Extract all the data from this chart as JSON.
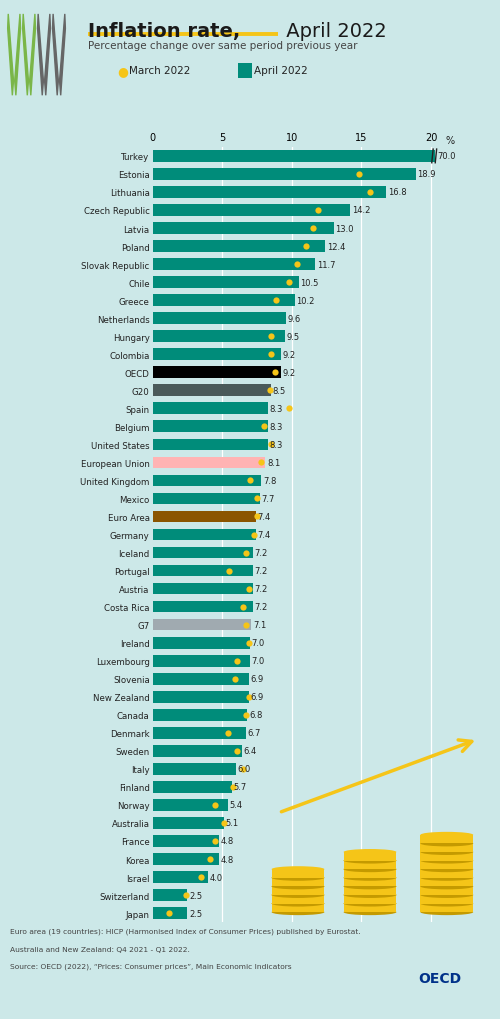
{
  "title_bold": "Inflation rate,",
  "title_regular": " April 2022",
  "subtitle": "Percentage change over same period previous year",
  "background_color": "#cce8e8",
  "bar_color_default": "#008C7A",
  "bar_color_oecd": "#000000",
  "bar_color_g20": "#4a5a5a",
  "bar_color_eu": "#ffb3b3",
  "bar_color_euroarea": "#8B5500",
  "bar_color_g7": "#a0aab0",
  "dot_color": "#F5C518",
  "countries": [
    "Turkey",
    "Estonia",
    "Lithuania",
    "Czech Republic",
    "Latvia",
    "Poland",
    "Slovak Republic",
    "Chile",
    "Greece",
    "Netherlands",
    "Hungary",
    "Colombia",
    "OECD",
    "G20",
    "Spain",
    "Belgium",
    "United States",
    "European Union",
    "United Kingdom",
    "Mexico",
    "Euro Area",
    "Germany",
    "Iceland",
    "Portugal",
    "Austria",
    "Costa Rica",
    "G7",
    "Ireland",
    "Luxembourg",
    "Slovenia",
    "New Zealand",
    "Canada",
    "Denmark",
    "Sweden",
    "Italy",
    "Finland",
    "Norway",
    "Australia",
    "France",
    "Korea",
    "Israel",
    "Switzerland",
    "Japan"
  ],
  "april_values": [
    70.0,
    18.9,
    16.8,
    14.2,
    13.0,
    12.4,
    11.7,
    10.5,
    10.2,
    9.6,
    9.5,
    9.2,
    9.2,
    8.5,
    8.3,
    8.3,
    8.3,
    8.1,
    7.8,
    7.7,
    7.4,
    7.4,
    7.2,
    7.2,
    7.2,
    7.2,
    7.1,
    7.0,
    7.0,
    6.9,
    6.9,
    6.8,
    6.7,
    6.4,
    6.0,
    5.7,
    5.4,
    5.1,
    4.8,
    4.8,
    4.0,
    2.5,
    2.5
  ],
  "march_values": [
    null,
    14.8,
    15.6,
    11.9,
    11.5,
    11.0,
    10.4,
    9.8,
    8.9,
    null,
    8.5,
    8.5,
    8.8,
    8.4,
    9.8,
    8.0,
    8.5,
    7.8,
    7.0,
    7.5,
    7.5,
    7.3,
    6.7,
    5.5,
    6.9,
    6.5,
    6.7,
    6.9,
    6.1,
    5.9,
    6.9,
    6.7,
    5.4,
    6.1,
    6.5,
    5.8,
    4.5,
    5.1,
    4.5,
    4.1,
    3.5,
    2.4,
    1.2
  ],
  "bar_colors": [
    "#008C7A",
    "#008C7A",
    "#008C7A",
    "#008C7A",
    "#008C7A",
    "#008C7A",
    "#008C7A",
    "#008C7A",
    "#008C7A",
    "#008C7A",
    "#008C7A",
    "#008C7A",
    "#000000",
    "#4a5a5a",
    "#008C7A",
    "#008C7A",
    "#008C7A",
    "#ffb3b3",
    "#008C7A",
    "#008C7A",
    "#8B5500",
    "#008C7A",
    "#008C7A",
    "#008C7A",
    "#008C7A",
    "#008C7A",
    "#a0aab0",
    "#008C7A",
    "#008C7A",
    "#008C7A",
    "#008C7A",
    "#008C7A",
    "#008C7A",
    "#008C7A",
    "#008C7A",
    "#008C7A",
    "#008C7A",
    "#008C7A",
    "#008C7A",
    "#008C7A",
    "#008C7A",
    "#008C7A",
    "#008C7A"
  ],
  "footnote1": "Euro area (19 countries): HICP (Harmonised Index of Consumer Prices) published by Eurostat.",
  "footnote2": "Australia and New Zealand: Q4 2021 - Q1 2022.",
  "footnote3": "Source: OECD (2022), “Prices: Consumer prices”, Main Economic Indicators"
}
